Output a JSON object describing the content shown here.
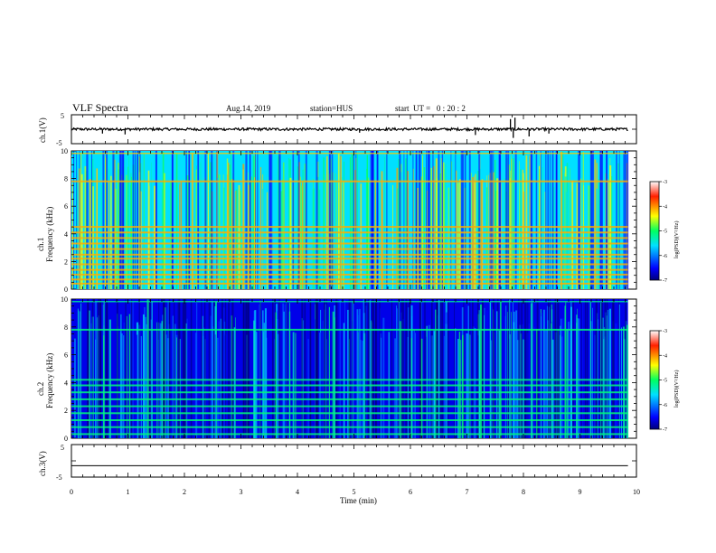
{
  "header": {
    "title": "VLF Spectra",
    "date": "Aug.14, 2019",
    "station": "station=HUS",
    "start": "start  UT =   0 : 20 : 2"
  },
  "chart_data": [
    {
      "type": "line",
      "panel": "ch1-waveform",
      "ylabel": "ch.1(V)",
      "ylim": [
        -5,
        5
      ],
      "yticks": [
        "5",
        "-5"
      ],
      "description_values": {
        "baseline_v": 0.0,
        "spikes_min": [
          0.55,
          0.95,
          5.1,
          7.15,
          7.77,
          7.82,
          7.85,
          8.1,
          8.45
        ],
        "spike_amplitudes_v": [
          -1.5,
          -1.8,
          -1.2,
          -2.0,
          3.5,
          -3.0,
          4.0,
          -2.5,
          -1.5
        ]
      }
    },
    {
      "type": "heatmap",
      "panel": "ch1-spectrogram",
      "ylabel": "ch.1\nFrequency (kHz)",
      "ylabel_line1": "ch.1",
      "ylabel_line2": "Frequency (kHz)",
      "ylim": [
        0,
        10
      ],
      "yticks": [
        "0",
        "2",
        "4",
        "6",
        "8",
        "10"
      ],
      "xlim": [
        0,
        10
      ],
      "colorbar": {
        "label": "log(PSD)(V²/Hz)",
        "range": [
          -7,
          -3
        ],
        "ticks": [
          "-3",
          "-4",
          "-5",
          "-6",
          "-7"
        ]
      },
      "band_lines_khz": [
        0.4,
        0.7,
        1.05,
        1.4,
        1.8,
        2.2,
        2.5,
        2.9,
        3.3,
        3.7,
        4.1,
        4.5,
        7.8
      ],
      "background_level": -5.6
    },
    {
      "type": "heatmap",
      "panel": "ch2-spectrogram",
      "ylabel": "ch.2\nFrequency (kHz)",
      "ylabel_line1": "ch.2",
      "ylabel_line2": "Frequency (kHz)",
      "ylim": [
        0,
        10
      ],
      "yticks": [
        "0",
        "2",
        "4",
        "6",
        "8",
        "10"
      ],
      "xlim": [
        0,
        10
      ],
      "colorbar": {
        "label": "log(PSD)(V²/Hz)",
        "range": [
          -7,
          -3
        ],
        "ticks": [
          "-3",
          "-4",
          "-5",
          "-6",
          "-7"
        ]
      },
      "band_lines_khz": [
        0.3,
        0.8,
        1.3,
        1.8,
        2.3,
        2.8,
        3.3,
        3.8,
        4.2,
        7.8
      ],
      "background_level": -6.6
    },
    {
      "type": "line",
      "panel": "ch3-waveform",
      "ylabel": "ch.3(V)",
      "ylim": [
        -5,
        5
      ],
      "yticks": [
        "5",
        "-5"
      ],
      "xlabel": "Time (min)",
      "xlim": [
        0,
        10
      ],
      "xticks": [
        "0",
        "1",
        "2",
        "3",
        "4",
        "5",
        "6",
        "7",
        "8",
        "9",
        "10"
      ],
      "values_const_v": -1.5
    }
  ]
}
